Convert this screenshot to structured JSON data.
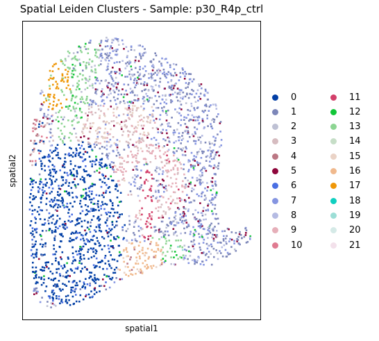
{
  "chart_data": {
    "type": "scatter",
    "title": "Spatial Leiden Clusters - Sample: p30_R4p_ctrl",
    "xlabel": "spatial1",
    "ylabel": "spatial2",
    "x_ticks": false,
    "y_ticks": false,
    "grid": false,
    "legend_placement": "right",
    "legend_columns": 2,
    "legend": [
      {
        "label": "0",
        "color": "#023fa5"
      },
      {
        "label": "1",
        "color": "#7d87b9"
      },
      {
        "label": "2",
        "color": "#bec1d4"
      },
      {
        "label": "3",
        "color": "#d6bcc0"
      },
      {
        "label": "4",
        "color": "#bb7784"
      },
      {
        "label": "5",
        "color": "#8e063b"
      },
      {
        "label": "6",
        "color": "#4a6fe3"
      },
      {
        "label": "7",
        "color": "#8595e1"
      },
      {
        "label": "8",
        "color": "#b5bbe3"
      },
      {
        "label": "9",
        "color": "#e6afb9"
      },
      {
        "label": "10",
        "color": "#e07b91"
      },
      {
        "label": "11",
        "color": "#d33f6a"
      },
      {
        "label": "12",
        "color": "#11c638"
      },
      {
        "label": "13",
        "color": "#8dd593"
      },
      {
        "label": "14",
        "color": "#c6dec7"
      },
      {
        "label": "15",
        "color": "#ead3c6"
      },
      {
        "label": "16",
        "color": "#f0b98d"
      },
      {
        "label": "17",
        "color": "#ef9708"
      },
      {
        "label": "18",
        "color": "#0fcfc0"
      },
      {
        "label": "19",
        "color": "#9cded6"
      },
      {
        "label": "20",
        "color": "#d5eae7"
      },
      {
        "label": "21",
        "color": "#f3e1eb"
      }
    ]
  }
}
